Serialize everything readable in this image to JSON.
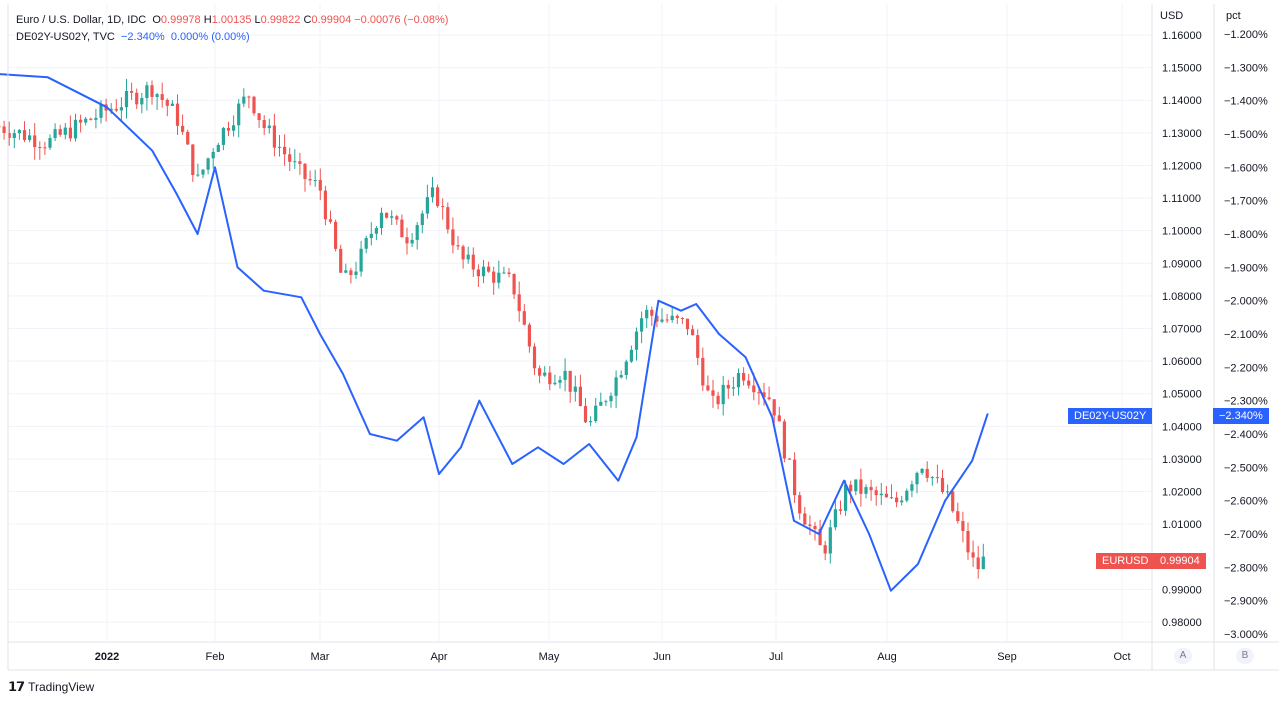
{
  "legend": {
    "main": {
      "title": "Euro / U.S. Dollar, 1D, IDC",
      "o_label": "O",
      "o": "0.99978",
      "h_label": "H",
      "h": "1.00135",
      "l_label": "L",
      "l": "0.99822",
      "c_label": "C",
      "c": "0.99904",
      "chg": "−0.00076 (−0.08%)"
    },
    "overlay": {
      "title": "DE02Y-US02Y, TVC",
      "value": "−2.340%",
      "chg": "0.000% (0.00%)"
    }
  },
  "axes": {
    "left_unit": "USD",
    "right_unit": "pct"
  },
  "tags": {
    "overlay_name": "DE02Y-US02Y",
    "overlay_value": "−2.340%",
    "main_name": "EURUSD",
    "main_value": "0.99904"
  },
  "buttons": {
    "a": "A",
    "b": "B"
  },
  "brand": {
    "name": "TradingView"
  },
  "colors": {
    "up": "#26a69a",
    "down": "#ef5350",
    "overlay": "#2962ff",
    "grid": "#f0f3fa"
  },
  "chart_data": {
    "type": "line",
    "title": "Euro / U.S. Dollar, 1D, IDC",
    "x_ticks": [
      "2022",
      "Feb",
      "Mar",
      "Apr",
      "May",
      "Jun",
      "Jul",
      "Aug",
      "Sep",
      "Oct"
    ],
    "usd_ticks": [
      "1.16000",
      "1.15000",
      "1.14000",
      "1.13000",
      "1.12000",
      "1.11000",
      "1.10000",
      "1.09000",
      "1.08000",
      "1.07000",
      "1.06000",
      "1.05000",
      "1.04000",
      "1.03000",
      "1.02000",
      "1.01000",
      "0.99000",
      "0.98000"
    ],
    "pct_ticks": [
      "−1.200%",
      "−1.300%",
      "−1.400%",
      "−1.500%",
      "−1.600%",
      "−1.700%",
      "−1.800%",
      "−1.900%",
      "−2.000%",
      "−2.100%",
      "−2.200%",
      "−2.300%",
      "−2.400%",
      "−2.500%",
      "−2.600%",
      "−2.700%",
      "−2.800%",
      "−2.900%",
      "−3.000%"
    ],
    "usd_range": [
      0.976,
      1.163
    ],
    "pct_range": [
      -3.02,
      -1.19
    ],
    "date_range": [
      "2021-12-01",
      "2022-10-15"
    ],
    "grid": true,
    "series": [
      {
        "name": "EURUSD",
        "kind": "candlestick",
        "close_x": [
          "2021-12-01",
          "2021-12-15",
          "2022-01-01",
          "2022-01-14",
          "2022-01-21",
          "2022-01-27",
          "2022-02-01",
          "2022-02-10",
          "2022-02-14",
          "2022-02-24",
          "2022-03-01",
          "2022-03-07",
          "2022-03-11",
          "2022-03-17",
          "2022-03-21",
          "2022-03-24",
          "2022-03-31",
          "2022-04-07",
          "2022-04-14",
          "2022-04-21",
          "2022-04-28",
          "2022-05-05",
          "2022-05-12",
          "2022-05-20",
          "2022-05-27",
          "2022-06-01",
          "2022-06-08",
          "2022-06-14",
          "2022-06-22",
          "2022-06-30",
          "2022-07-07",
          "2022-07-14",
          "2022-07-21",
          "2022-07-28",
          "2022-08-03",
          "2022-08-10",
          "2022-08-17",
          "2022-08-24",
          "2022-08-26"
        ],
        "close_y": [
          1.132,
          1.127,
          1.137,
          1.144,
          1.135,
          1.115,
          1.127,
          1.142,
          1.132,
          1.117,
          1.113,
          1.084,
          1.09,
          1.107,
          1.101,
          1.098,
          1.112,
          1.091,
          1.087,
          1.084,
          1.055,
          1.057,
          1.04,
          1.056,
          1.075,
          1.073,
          1.071,
          1.046,
          1.057,
          1.048,
          1.017,
          1.001,
          1.022,
          1.019,
          1.016,
          1.029,
          1.017,
          0.996,
          0.999
        ]
      },
      {
        "name": "DE02Y-US02Y",
        "x": [
          "2021-12-01",
          "2021-12-15",
          "2022-01-01",
          "2022-01-14",
          "2022-01-21",
          "2022-01-27",
          "2022-02-01",
          "2022-02-07",
          "2022-02-14",
          "2022-02-24",
          "2022-03-01",
          "2022-03-07",
          "2022-03-14",
          "2022-03-21",
          "2022-03-28",
          "2022-04-01",
          "2022-04-07",
          "2022-04-12",
          "2022-04-21",
          "2022-04-28",
          "2022-05-05",
          "2022-05-12",
          "2022-05-20",
          "2022-05-25",
          "2022-05-31",
          "2022-06-06",
          "2022-06-10",
          "2022-06-16",
          "2022-06-23",
          "2022-06-30",
          "2022-07-06",
          "2022-07-13",
          "2022-07-20",
          "2022-07-27",
          "2022-08-02",
          "2022-08-09",
          "2022-08-16",
          "2022-08-23",
          "2022-08-27"
        ],
        "y": [
          -1.32,
          -1.33,
          -1.42,
          -1.55,
          -1.68,
          -1.8,
          -1.6,
          -1.9,
          -1.97,
          -1.99,
          -2.1,
          -2.22,
          -2.4,
          -2.42,
          -2.35,
          -2.52,
          -2.44,
          -2.3,
          -2.49,
          -2.44,
          -2.49,
          -2.43,
          -2.54,
          -2.41,
          -2.0,
          -2.03,
          -2.01,
          -2.1,
          -2.17,
          -2.35,
          -2.66,
          -2.7,
          -2.54,
          -2.7,
          -2.87,
          -2.79,
          -2.6,
          -2.48,
          -2.34
        ]
      }
    ]
  }
}
